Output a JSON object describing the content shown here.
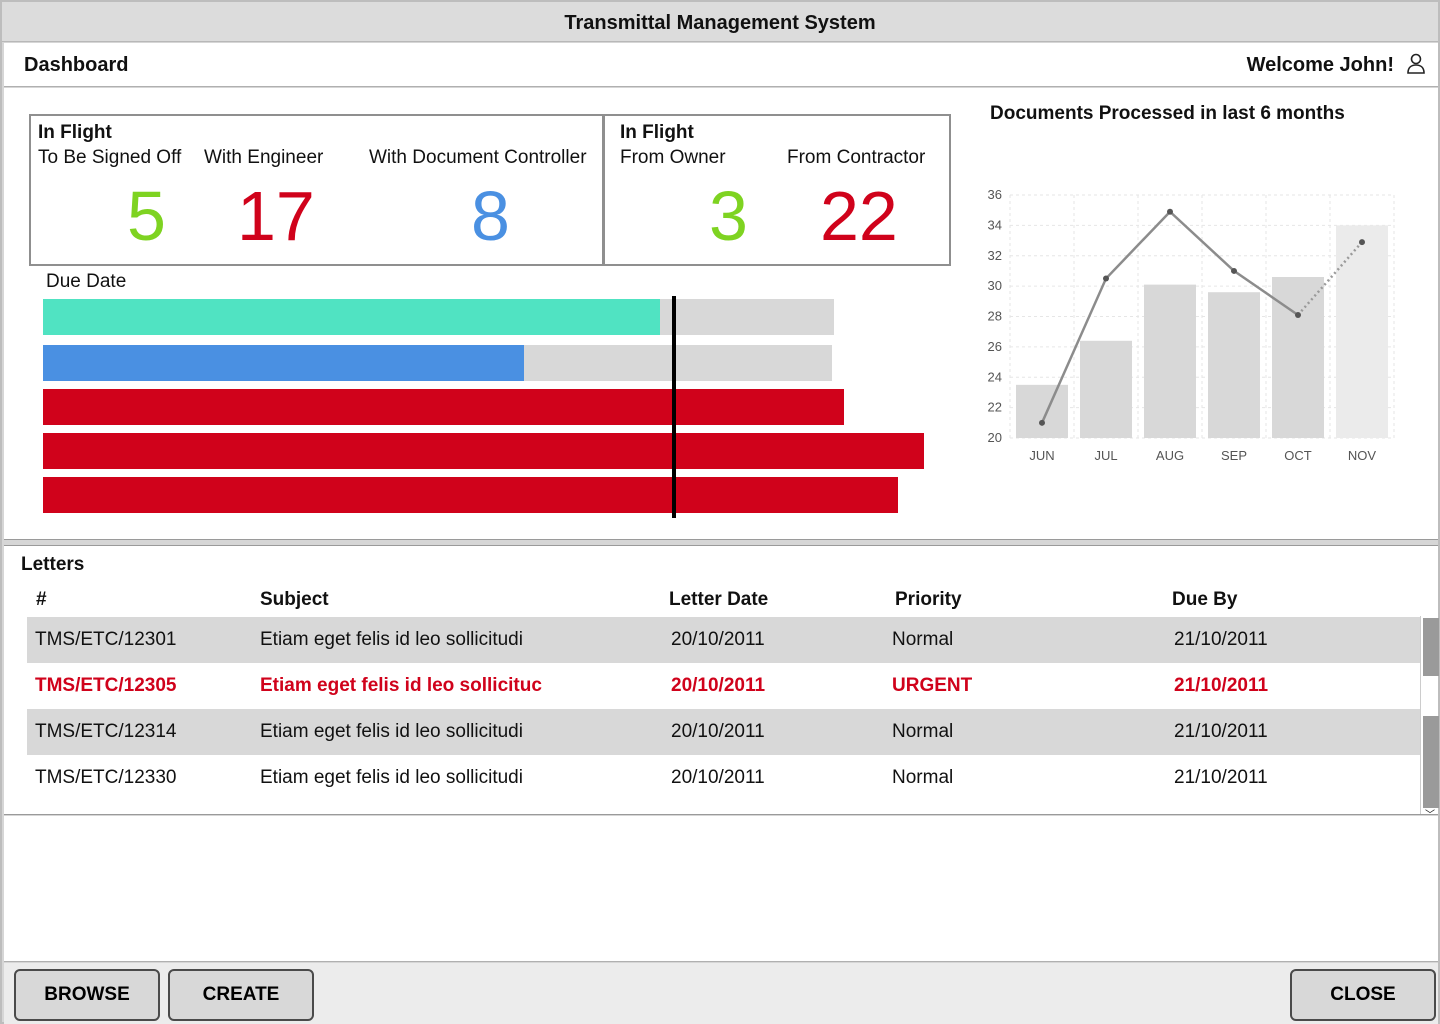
{
  "window": {
    "title": "Transmittal Management System"
  },
  "header": {
    "section": "Dashboard",
    "welcome": "Welcome John!",
    "user_icon": "user-icon"
  },
  "kpis": {
    "left": {
      "title": "In Flight",
      "items": [
        {
          "label": "To Be Signed Off",
          "value": "5",
          "color": "#7ed321"
        },
        {
          "label": "With Engineer",
          "value": "17",
          "color": "#d0021b"
        },
        {
          "label": "With Document Controller",
          "value": "8",
          "color": "#4a90e2"
        }
      ]
    },
    "right": {
      "title": "In Flight",
      "items": [
        {
          "label": "From Owner",
          "value": "3",
          "color": "#7ed321"
        },
        {
          "label": "From Contractor",
          "value": "22",
          "color": "#d0021b"
        }
      ]
    }
  },
  "due_date": {
    "label": "Due Date",
    "bars": [
      {
        "progress": 0.78,
        "color": "#50e3c2"
      },
      {
        "progress": 0.61,
        "color": "#4a90e2"
      },
      {
        "progress": 1.0,
        "color": "#d0021b"
      },
      {
        "progress": 1.0,
        "color": "#d0021b"
      },
      {
        "progress": 1.0,
        "color": "#d0021b"
      }
    ]
  },
  "chart_data": {
    "type": "bar",
    "title": "Documents Processed in last 6 months",
    "categories": [
      "JUN",
      "JUL",
      "AUG",
      "SEP",
      "OCT",
      "NOV"
    ],
    "series": [
      {
        "type": "bar",
        "values": [
          23.5,
          26.4,
          30.1,
          29.6,
          30.6,
          34.0
        ]
      },
      {
        "type": "line",
        "values": [
          21.0,
          30.5,
          34.9,
          31.0,
          28.1,
          32.9
        ]
      }
    ],
    "yticks": [
      20,
      22,
      24,
      26,
      28,
      30,
      32,
      34,
      36
    ],
    "ylim": [
      20,
      36
    ],
    "grid": true
  },
  "letters": {
    "title": "Letters",
    "columns": [
      "#",
      "Subject",
      "Letter Date",
      "Priority",
      "Due By"
    ],
    "rows": [
      {
        "id": "TMS/ETC/12301",
        "subject": "Etiam eget felis id leo sollicitudi",
        "letter_date": "20/10/2011",
        "priority": "Normal",
        "due_by": "21/10/2011",
        "urgent": false
      },
      {
        "id": "TMS/ETC/12305",
        "subject": "Etiam eget felis id leo sollicituc",
        "letter_date": "20/10/2011",
        "priority": "URGENT",
        "due_by": "21/10/2011",
        "urgent": true
      },
      {
        "id": "TMS/ETC/12314",
        "subject": "Etiam eget felis id leo sollicitudi",
        "letter_date": "20/10/2011",
        "priority": "Normal",
        "due_by": "21/10/2011",
        "urgent": false
      },
      {
        "id": "TMS/ETC/12330",
        "subject": "Etiam eget felis id leo sollicitudi",
        "letter_date": "20/10/2011",
        "priority": "Normal",
        "due_by": "21/10/2011",
        "urgent": false
      }
    ]
  },
  "footer": {
    "browse": "BROWSE",
    "create": "CREATE",
    "close": "CLOSE"
  }
}
